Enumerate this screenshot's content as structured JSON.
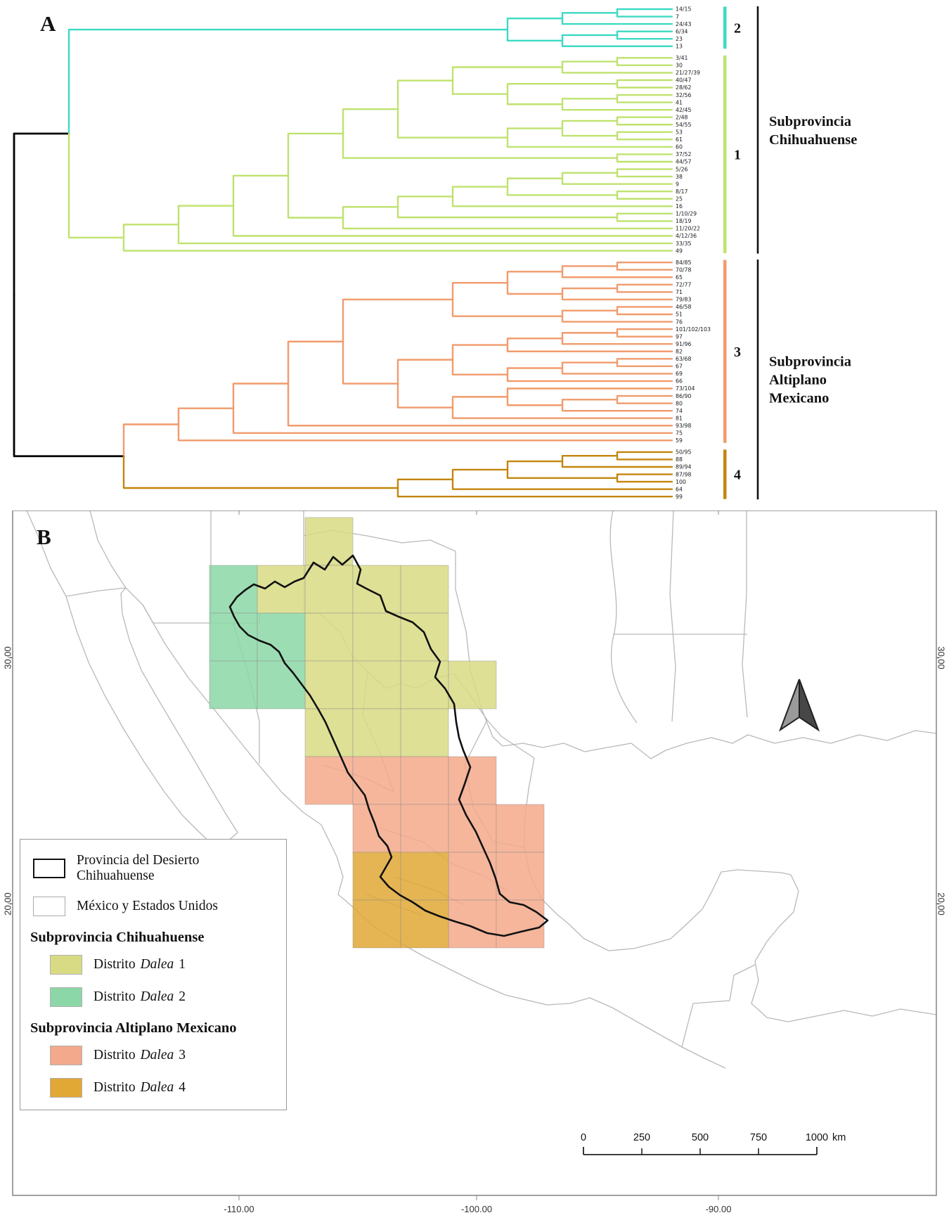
{
  "figure": {
    "panel_a_letter": "A",
    "panel_b_letter": "B"
  },
  "chart_data": [
    {
      "type": "dendrogram",
      "panel": "A",
      "orientation": "left-to-right",
      "groups": [
        {
          "id": "2",
          "bracket_label": "2",
          "color": "#3cd9c3",
          "tips": [
            "14/15",
            "7",
            "24/43",
            "6/34",
            "23",
            "13"
          ],
          "topology": [
            [
              [
                "14/15",
                "7"
              ],
              "24/43"
            ],
            [
              [
                "6/34",
                "23"
              ],
              "13"
            ]
          ]
        },
        {
          "id": "1",
          "bracket_label": "1",
          "color": "#bfe26e",
          "tips": [
            "3/41",
            "30",
            "21/27/39",
            "40/47",
            "28/62",
            "32/56",
            "41",
            "42/45",
            "2/48",
            "54/55",
            "53",
            "61",
            "60",
            "37/52",
            "44/57",
            "5/26",
            "38",
            "9",
            "8/17",
            "25",
            "16",
            "1/10/29",
            "18/19",
            "11/20/22",
            "4/12/36",
            "33/35",
            "49"
          ],
          "topology": [
            [
              [
                [
                  [
                    [
                      [
                        [
                          [
                            "3/41",
                            "30"
                          ],
                          "21/27/39"
                        ],
                        [
                          [
                            "40/47",
                            "28/62"
                          ],
                          [
                            [
                              "32/56",
                              "41"
                            ],
                            "42/45"
                          ]
                        ]
                      ],
                      [
                        [
                          [
                            "2/48",
                            "54/55"
                          ],
                          [
                            "53",
                            "61"
                          ]
                        ],
                        "60"
                      ]
                    ],
                    [
                      "37/52",
                      "44/57"
                    ]
                  ],
                  [
                    [
                      [
                        [
                          [
                            [
                              "5/26",
                              "38"
                            ],
                            "9"
                          ],
                          [
                            "8/17",
                            "25"
                          ]
                        ],
                        "16"
                      ],
                      [
                        "1/10/29",
                        "18/19"
                      ]
                    ],
                    "11/20/22"
                  ]
                ],
                "4/12/36"
              ],
              "33/35"
            ],
            "49"
          ]
        },
        {
          "id": "3",
          "bracket_label": "3",
          "color": "#f19b6c",
          "tips": [
            "84/85",
            "70/78",
            "65",
            "72/77",
            "71",
            "79/83",
            "46/58",
            "51",
            "76",
            "101/102/103",
            "97",
            "91/96",
            "82",
            "63/68",
            "67",
            "69",
            "66",
            "73/104",
            "86/90",
            "80",
            "74",
            "81",
            "93/98",
            "75",
            "59"
          ],
          "topology": [
            [
              [
                [
                  [
                    [
                      [
                        [
                          "84/85",
                          "70/78"
                        ],
                        "65"
                      ],
                      [
                        [
                          "72/77",
                          "71"
                        ],
                        "79/83"
                      ]
                    ],
                    [
                      [
                        "46/58",
                        "51"
                      ],
                      "76"
                    ]
                  ],
                  [
                    [
                      [
                        [
                          [
                            "101/102/103",
                            "97"
                          ],
                          "91/96"
                        ],
                        "82"
                      ],
                      [
                        [
                          [
                            "63/68",
                            "67"
                          ],
                          "69"
                        ],
                        "66"
                      ]
                    ],
                    [
                      [
                        "73/104",
                        [
                          [
                            "86/90",
                            "80"
                          ],
                          "74"
                        ]
                      ],
                      "81"
                    ]
                  ]
                ],
                "93/98"
              ],
              "75"
            ],
            "59"
          ]
        },
        {
          "id": "4",
          "bracket_label": "4",
          "color": "#c4860e",
          "tips": [
            "50/95",
            "88",
            "89/94",
            "87/98",
            "100",
            "64",
            "99"
          ],
          "topology": [
            [
              [
                [
                  [
                    "50/95",
                    "88"
                  ],
                  "89/94"
                ],
                [
                  "87/98",
                  "100"
                ]
              ],
              "64"
            ],
            "99"
          ]
        }
      ],
      "clades": [
        {
          "label_lines": [
            "Subprovincia",
            "Chihuahuense"
          ],
          "groups": [
            "2",
            "1"
          ]
        },
        {
          "label_lines": [
            "Subprovincia",
            "Altiplano",
            "Mexicano"
          ],
          "groups": [
            "3",
            "4"
          ]
        }
      ]
    },
    {
      "type": "map",
      "panel": "B",
      "region": "Mexico and southern United States",
      "districts": [
        {
          "id": "dalea-1",
          "label": "Distrito Dalea 1",
          "color": "#d8db84",
          "cells": [
            [
              6,
              0
            ],
            [
              5,
              1
            ],
            [
              6,
              1
            ],
            [
              7,
              1
            ],
            [
              8,
              1
            ],
            [
              6,
              2
            ],
            [
              7,
              2
            ],
            [
              8,
              2
            ],
            [
              6,
              3
            ],
            [
              7,
              3
            ],
            [
              8,
              3
            ],
            [
              9,
              3
            ],
            [
              6,
              4
            ],
            [
              7,
              4
            ],
            [
              8,
              4
            ]
          ]
        },
        {
          "id": "dalea-2",
          "label": "Distrito Dalea 2",
          "color": "#8cd7a7",
          "cells": [
            [
              4,
              1
            ],
            [
              4,
              2
            ],
            [
              5,
              2
            ],
            [
              4,
              3
            ],
            [
              5,
              3
            ]
          ]
        },
        {
          "id": "dalea-3",
          "label": "Distrito Dalea 3",
          "color": "#f3a98b",
          "cells": [
            [
              6,
              5
            ],
            [
              7,
              5
            ],
            [
              8,
              5
            ],
            [
              9,
              5
            ],
            [
              7,
              6
            ],
            [
              8,
              6
            ],
            [
              9,
              6
            ],
            [
              10,
              6
            ],
            [
              9,
              7
            ],
            [
              10,
              7
            ],
            [
              9,
              8
            ],
            [
              10,
              8
            ]
          ]
        },
        {
          "id": "dalea-4",
          "label": "Distrito Dalea 4",
          "color": "#e1a836",
          "cells": [
            [
              7,
              7
            ],
            [
              8,
              7
            ],
            [
              7,
              8
            ],
            [
              8,
              8
            ]
          ]
        }
      ],
      "legend": {
        "outline_items": [
          {
            "style": "black-outline",
            "label": "Provincia del Desierto Chihuahuense"
          },
          {
            "style": "gray-outline",
            "label": "México y Estados Unidos"
          }
        ],
        "sections": [
          {
            "title": "Subprovincia Chihuahuense",
            "items": [
              {
                "district": "dalea-1",
                "prefix": "Distrito",
                "taxon": "Dalea",
                "number": "1",
                "color": "#d8db84"
              },
              {
                "district": "dalea-2",
                "prefix": "Distrito",
                "taxon": "Dalea",
                "number": "2",
                "color": "#8cd7a7"
              }
            ]
          },
          {
            "title": "Subprovincia Altiplano Mexicano",
            "items": [
              {
                "district": "dalea-3",
                "prefix": "Distrito",
                "taxon": "Dalea",
                "number": "3",
                "color": "#f3a98b"
              },
              {
                "district": "dalea-4",
                "prefix": "Distrito",
                "taxon": "Dalea",
                "number": "4",
                "color": "#e1a836"
              }
            ]
          }
        ]
      },
      "scalebar": {
        "tick_labels": [
          "0",
          "250",
          "500",
          "750",
          "1000"
        ],
        "unit": "km"
      },
      "axes": {
        "bottom": [
          "-110.00",
          "-100.00",
          "-90.00"
        ],
        "left": [
          "30,00",
          "20,00"
        ],
        "right": [
          "30,00",
          "20,00"
        ]
      }
    }
  ]
}
